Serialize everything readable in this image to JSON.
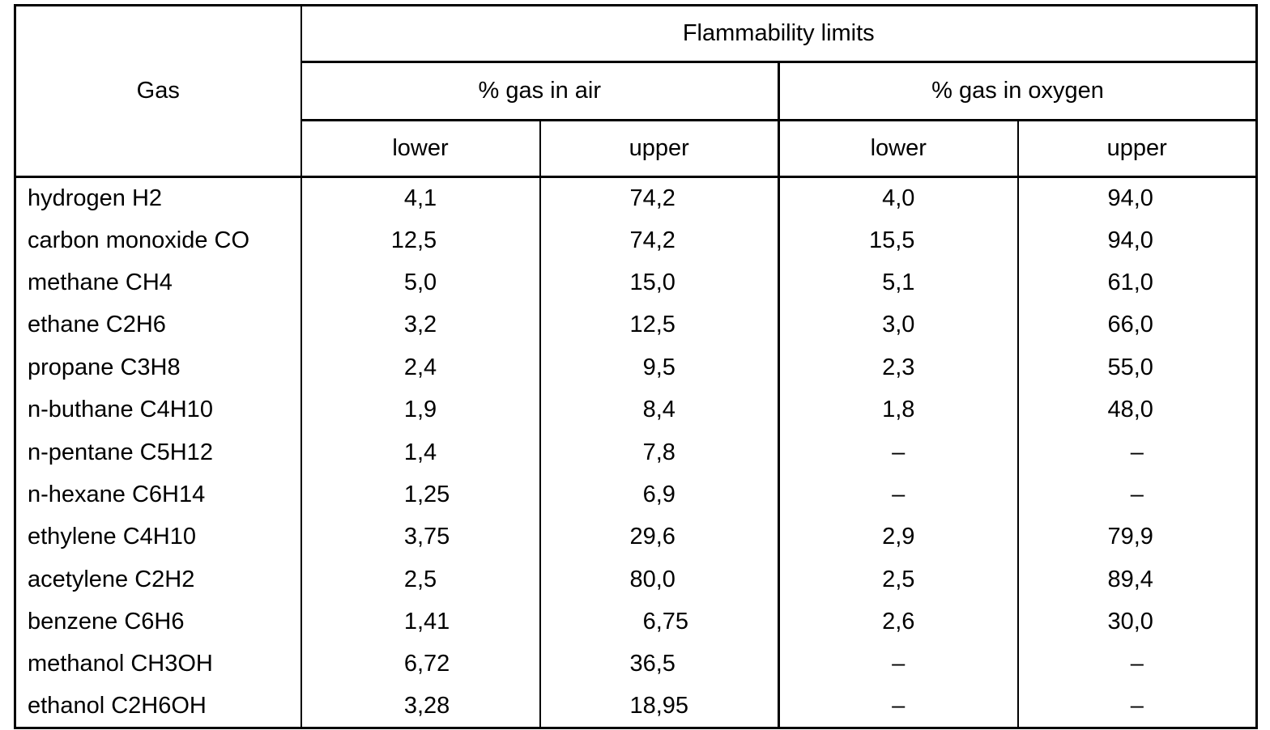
{
  "header": {
    "gas": "Gas",
    "flammability": "Flammability limits",
    "air": "% gas in air",
    "oxygen": "% gas in oxygen",
    "lower": "lower",
    "upper": "upper"
  },
  "table": {
    "columns": [
      "Gas",
      "% gas in air lower",
      "% gas in air upper",
      "% gas in oxygen lower",
      "% gas in oxygen upper"
    ],
    "rows": [
      [
        "hydrogen H2",
        "4,1",
        "74,2",
        "4,0",
        "94,0"
      ],
      [
        "carbon monoxide CO",
        "12,5",
        "74,2",
        "15,5",
        "94,0"
      ],
      [
        "methane CH4",
        "5,0",
        "15,0",
        "5,1",
        "61,0"
      ],
      [
        "ethane C2H6",
        "3,2",
        "12,5",
        "3,0",
        "66,0"
      ],
      [
        "propane C3H8",
        "2,4",
        "9,5",
        "2,3",
        "55,0"
      ],
      [
        "n-buthane C4H10",
        "1,9",
        "8,4",
        "1,8",
        "48,0"
      ],
      [
        "n-pentane C5H12",
        "1,4",
        "7,8",
        "–",
        "–"
      ],
      [
        "n-hexane C6H14",
        "1,25",
        "6,9",
        "–",
        "–"
      ],
      [
        "ethylene C4H10",
        "3,75",
        "29,6",
        "2,9",
        "79,9"
      ],
      [
        "acetylene C2H2",
        "2,5",
        "80,0",
        "2,5",
        "89,4"
      ],
      [
        "benzene C6H6",
        "1,41",
        "6,75",
        "2,6",
        "30,0"
      ],
      [
        "methanol CH3OH",
        "6,72",
        "36,5",
        "–",
        "–"
      ],
      [
        "ethanol C2H6OH",
        "3,28",
        "18,95",
        "–",
        "–"
      ]
    ],
    "empty_value": "–"
  },
  "colors": {
    "text": "#000000",
    "border": "#000000",
    "background": "#ffffff"
  }
}
